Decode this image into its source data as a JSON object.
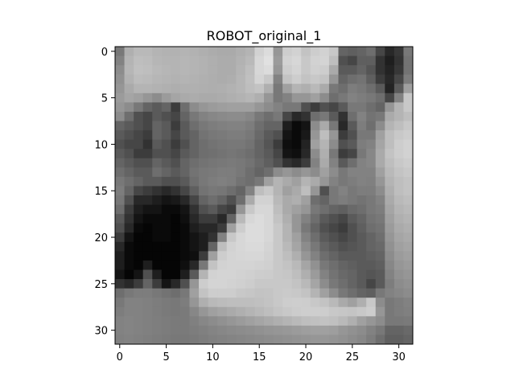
{
  "chart_data": {
    "type": "heatmap",
    "title": "ROBOT_original_1",
    "xlabel": "",
    "ylabel": "",
    "colormap": "gray",
    "rows": 32,
    "cols": 32,
    "xlim": [
      -0.5,
      31.5
    ],
    "ylim": [
      31.5,
      -0.5
    ],
    "x_ticks": [
      0,
      5,
      10,
      15,
      20,
      25,
      30
    ],
    "y_ticks": [
      0,
      5,
      10,
      15,
      20,
      25,
      30
    ],
    "x_tick_labels": [
      "0",
      "5",
      "10",
      "15",
      "20",
      "25",
      "30"
    ],
    "y_tick_labels": [
      "0",
      "5",
      "10",
      "15",
      "20",
      "25",
      "30"
    ],
    "grid": false,
    "values": [
      [
        120,
        175,
        185,
        185,
        180,
        178,
        178,
        180,
        178,
        175,
        172,
        170,
        170,
        175,
        180,
        210,
        220,
        150,
        205,
        210,
        195,
        205,
        210,
        200,
        100,
        95,
        100,
        110,
        70,
        40,
        55,
        120
      ],
      [
        130,
        180,
        190,
        188,
        182,
        180,
        180,
        182,
        180,
        178,
        175,
        172,
        172,
        178,
        185,
        215,
        225,
        155,
        210,
        215,
        200,
        210,
        212,
        190,
        80,
        70,
        95,
        95,
        50,
        30,
        50,
        115
      ],
      [
        140,
        182,
        192,
        190,
        185,
        182,
        180,
        182,
        180,
        178,
        175,
        172,
        172,
        180,
        190,
        215,
        220,
        150,
        205,
        212,
        200,
        208,
        205,
        170,
        90,
        90,
        100,
        85,
        50,
        35,
        55,
        115
      ],
      [
        145,
        178,
        188,
        186,
        182,
        180,
        178,
        180,
        178,
        176,
        174,
        172,
        174,
        182,
        192,
        212,
        200,
        130,
        195,
        205,
        195,
        200,
        195,
        150,
        100,
        110,
        115,
        95,
        60,
        40,
        70,
        125
      ],
      [
        150,
        170,
        180,
        180,
        178,
        176,
        174,
        176,
        176,
        175,
        174,
        175,
        178,
        182,
        190,
        195,
        175,
        120,
        160,
        180,
        175,
        185,
        170,
        120,
        110,
        125,
        120,
        110,
        90,
        35,
        90,
        160
      ],
      [
        155,
        165,
        160,
        150,
        140,
        155,
        165,
        170,
        172,
        170,
        170,
        172,
        175,
        178,
        182,
        175,
        150,
        120,
        130,
        150,
        150,
        160,
        140,
        110,
        120,
        130,
        125,
        120,
        110,
        70,
        130,
        200
      ],
      [
        150,
        140,
        120,
        100,
        90,
        100,
        60,
        110,
        140,
        150,
        155,
        158,
        160,
        160,
        160,
        150,
        140,
        130,
        120,
        120,
        80,
        60,
        80,
        70,
        90,
        120,
        120,
        110,
        100,
        150,
        180,
        200
      ],
      [
        140,
        110,
        80,
        70,
        90,
        80,
        70,
        100,
        120,
        130,
        135,
        138,
        140,
        140,
        135,
        120,
        110,
        120,
        70,
        40,
        50,
        110,
        120,
        90,
        50,
        110,
        130,
        115,
        120,
        170,
        180,
        190
      ],
      [
        100,
        90,
        80,
        70,
        100,
        90,
        60,
        90,
        110,
        120,
        125,
        128,
        130,
        130,
        125,
        110,
        100,
        100,
        30,
        10,
        20,
        140,
        170,
        120,
        40,
        90,
        125,
        110,
        140,
        180,
        190,
        200
      ],
      [
        90,
        80,
        70,
        60,
        100,
        90,
        70,
        90,
        100,
        115,
        120,
        122,
        125,
        125,
        120,
        105,
        90,
        80,
        20,
        10,
        25,
        150,
        190,
        150,
        60,
        80,
        120,
        120,
        160,
        190,
        200,
        205
      ],
      [
        80,
        70,
        70,
        50,
        90,
        80,
        60,
        80,
        100,
        110,
        115,
        118,
        120,
        120,
        115,
        100,
        85,
        60,
        15,
        10,
        35,
        160,
        180,
        140,
        80,
        90,
        125,
        130,
        165,
        190,
        205,
        210
      ],
      [
        90,
        80,
        60,
        60,
        80,
        80,
        70,
        90,
        100,
        110,
        112,
        115,
        118,
        115,
        110,
        100,
        90,
        70,
        20,
        15,
        40,
        140,
        175,
        120,
        60,
        70,
        120,
        135,
        170,
        195,
        205,
        210
      ],
      [
        100,
        90,
        80,
        80,
        100,
        90,
        80,
        100,
        110,
        115,
        118,
        120,
        122,
        120,
        115,
        105,
        95,
        80,
        50,
        40,
        60,
        130,
        170,
        130,
        90,
        110,
        130,
        135,
        170,
        190,
        200,
        205
      ],
      [
        110,
        100,
        90,
        90,
        110,
        100,
        90,
        100,
        115,
        120,
        122,
        125,
        125,
        120,
        110,
        100,
        110,
        140,
        150,
        140,
        150,
        140,
        160,
        140,
        120,
        130,
        130,
        130,
        160,
        185,
        195,
        200
      ],
      [
        120,
        110,
        100,
        90,
        90,
        80,
        80,
        90,
        110,
        120,
        125,
        128,
        125,
        115,
        110,
        120,
        160,
        180,
        170,
        160,
        180,
        170,
        150,
        130,
        120,
        125,
        130,
        128,
        150,
        180,
        190,
        195
      ],
      [
        125,
        100,
        70,
        60,
        50,
        40,
        50,
        70,
        95,
        115,
        120,
        118,
        110,
        100,
        130,
        190,
        200,
        180,
        160,
        170,
        190,
        150,
        80,
        120,
        130,
        120,
        125,
        125,
        140,
        175,
        190,
        195
      ],
      [
        120,
        80,
        40,
        40,
        30,
        20,
        25,
        40,
        70,
        100,
        110,
        100,
        80,
        110,
        170,
        210,
        210,
        185,
        170,
        175,
        160,
        110,
        100,
        120,
        125,
        120,
        115,
        120,
        130,
        170,
        185,
        190
      ],
      [
        110,
        60,
        30,
        20,
        20,
        10,
        10,
        20,
        50,
        80,
        90,
        70,
        60,
        150,
        200,
        215,
        215,
        190,
        170,
        160,
        150,
        120,
        110,
        100,
        95,
        105,
        110,
        120,
        125,
        165,
        180,
        185
      ],
      [
        90,
        50,
        20,
        10,
        10,
        10,
        5,
        15,
        40,
        60,
        60,
        40,
        100,
        185,
        215,
        220,
        215,
        195,
        175,
        150,
        130,
        110,
        90,
        80,
        70,
        90,
        100,
        115,
        120,
        160,
        175,
        180
      ],
      [
        80,
        40,
        10,
        5,
        10,
        10,
        5,
        10,
        30,
        40,
        40,
        60,
        160,
        205,
        220,
        220,
        215,
        200,
        180,
        150,
        120,
        100,
        80,
        70,
        60,
        80,
        95,
        110,
        115,
        155,
        170,
        175
      ],
      [
        60,
        20,
        5,
        5,
        10,
        10,
        5,
        10,
        20,
        30,
        50,
        130,
        200,
        215,
        220,
        220,
        215,
        200,
        180,
        160,
        130,
        110,
        90,
        80,
        70,
        80,
        90,
        100,
        110,
        150,
        165,
        170
      ],
      [
        40,
        10,
        5,
        5,
        5,
        5,
        5,
        10,
        20,
        30,
        100,
        190,
        210,
        215,
        218,
        218,
        212,
        200,
        185,
        165,
        140,
        120,
        100,
        90,
        80,
        85,
        90,
        100,
        105,
        145,
        160,
        165
      ],
      [
        30,
        10,
        5,
        5,
        5,
        5,
        5,
        10,
        15,
        60,
        160,
        205,
        212,
        214,
        215,
        215,
        210,
        200,
        190,
        175,
        150,
        130,
        110,
        100,
        90,
        90,
        90,
        95,
        100,
        140,
        155,
        160
      ],
      [
        30,
        10,
        5,
        30,
        5,
        5,
        5,
        15,
        40,
        120,
        195,
        210,
        212,
        212,
        212,
        210,
        208,
        200,
        195,
        185,
        165,
        145,
        120,
        110,
        100,
        95,
        90,
        90,
        95,
        135,
        150,
        155
      ],
      [
        20,
        5,
        20,
        80,
        30,
        5,
        5,
        30,
        90,
        180,
        210,
        212,
        212,
        210,
        208,
        205,
        204,
        200,
        198,
        190,
        175,
        155,
        130,
        115,
        105,
        100,
        90,
        85,
        90,
        130,
        145,
        150
      ],
      [
        50,
        40,
        60,
        100,
        60,
        20,
        40,
        80,
        150,
        205,
        212,
        212,
        210,
        208,
        205,
        200,
        200,
        200,
        200,
        195,
        185,
        165,
        140,
        120,
        110,
        100,
        90,
        70,
        90,
        125,
        140,
        145
      ],
      [
        110,
        120,
        125,
        125,
        120,
        115,
        110,
        120,
        160,
        195,
        205,
        205,
        205,
        200,
        198,
        195,
        196,
        200,
        202,
        200,
        195,
        180,
        160,
        140,
        120,
        110,
        100,
        95,
        120,
        130,
        135,
        140
      ],
      [
        120,
        130,
        130,
        128,
        125,
        122,
        120,
        125,
        150,
        175,
        185,
        188,
        190,
        190,
        190,
        192,
        195,
        200,
        205,
        206,
        205,
        200,
        195,
        185,
        170,
        160,
        175,
        200,
        140,
        120,
        125,
        130
      ],
      [
        125,
        130,
        130,
        128,
        125,
        122,
        120,
        122,
        135,
        150,
        160,
        165,
        170,
        175,
        180,
        185,
        190,
        196,
        200,
        204,
        206,
        206,
        205,
        200,
        198,
        196,
        200,
        205,
        150,
        120,
        125,
        128
      ],
      [
        130,
        132,
        130,
        128,
        126,
        124,
        122,
        122,
        128,
        135,
        140,
        145,
        150,
        155,
        160,
        165,
        170,
        175,
        180,
        185,
        190,
        192,
        194,
        192,
        185,
        175,
        160,
        150,
        140,
        120,
        120,
        122
      ],
      [
        130,
        132,
        130,
        128,
        126,
        124,
        122,
        122,
        125,
        128,
        132,
        135,
        138,
        140,
        142,
        145,
        148,
        150,
        152,
        155,
        158,
        160,
        160,
        158,
        150,
        145,
        140,
        130,
        120,
        100,
        100,
        105
      ],
      [
        128,
        130,
        128,
        126,
        124,
        122,
        120,
        120,
        122,
        125,
        128,
        130,
        132,
        134,
        136,
        138,
        140,
        142,
        144,
        146,
        148,
        150,
        150,
        148,
        145,
        140,
        135,
        125,
        110,
        95,
        95,
        100
      ]
    ]
  }
}
